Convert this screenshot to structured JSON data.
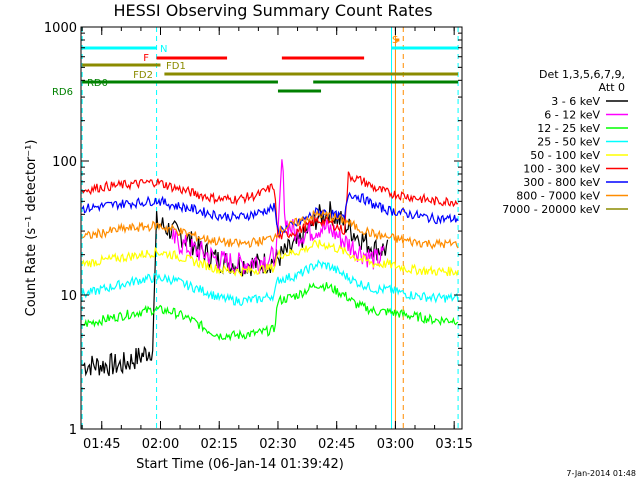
{
  "chart_data": {
    "type": "line",
    "title": "HESSI Observing Summary Count Rates",
    "xlabel": "Start Time (06-Jan-14 01:39:42)",
    "ylabel": "Count Rate (s⁻¹ detector⁻¹)",
    "timestamp": "7-Jan-2014 01:48",
    "yscale": "log",
    "ylim": [
      1,
      1000
    ],
    "xlim": [
      "01:39:42",
      "03:17:00"
    ],
    "x_ticks": [
      "01:45",
      "02:00",
      "02:15",
      "02:30",
      "02:45",
      "03:00",
      "03:15"
    ],
    "y_ticks": [
      "1",
      "10",
      "100",
      "1000"
    ],
    "grid": false,
    "legend": {
      "position": "right",
      "header": [
        "Det 1,3,5,6,7,9,",
        "Att 0"
      ],
      "entries": [
        {
          "label": "3 - 6 keV",
          "color": "#000000"
        },
        {
          "label": "6 - 12 keV",
          "color": "#ff00ff"
        },
        {
          "label": "12 - 25 keV",
          "color": "#00ff00"
        },
        {
          "label": "25 - 50 keV",
          "color": "#00ffff"
        },
        {
          "label": "50 - 100 keV",
          "color": "#ffff00"
        },
        {
          "label": "100 - 300 keV",
          "color": "#ff0000"
        },
        {
          "label": "300 - 800 keV",
          "color": "#0000ff"
        },
        {
          "label": "800 - 7000 keV",
          "color": "#ff8c00"
        },
        {
          "label": "7000 - 20000 keV",
          "color": "#8b8b00"
        }
      ]
    },
    "series": [
      {
        "name": "3 - 6 keV",
        "color": "#000000",
        "points": [
          [
            "01:40",
            3
          ],
          [
            "01:45",
            3
          ],
          [
            "01:50",
            3
          ],
          [
            "01:55",
            3.5
          ],
          [
            "01:58",
            4
          ],
          [
            "01:59",
            35
          ],
          [
            "02:03",
            30
          ],
          [
            "02:07",
            26
          ],
          [
            "02:10",
            22
          ],
          [
            "02:15",
            18
          ],
          [
            "02:20",
            17
          ],
          [
            "02:25",
            17
          ],
          [
            "02:29",
            18
          ],
          [
            "02:35",
            24
          ],
          [
            "02:40",
            38
          ],
          [
            "02:43",
            42
          ],
          [
            "02:47",
            34
          ],
          [
            "02:50",
            28
          ],
          [
            "02:55",
            22
          ],
          [
            "02:58",
            22
          ]
        ]
      },
      {
        "name": "6 - 12 keV",
        "color": "#ff00ff",
        "points": [
          [
            "02:03",
            26
          ],
          [
            "02:08",
            22
          ],
          [
            "02:12",
            20
          ],
          [
            "02:15",
            18
          ],
          [
            "02:20",
            17
          ],
          [
            "02:25",
            18
          ],
          [
            "02:29",
            19
          ],
          [
            "02:30",
            25
          ],
          [
            "02:31",
            100
          ],
          [
            "02:32",
            35
          ],
          [
            "02:35",
            28
          ],
          [
            "02:38",
            30
          ],
          [
            "02:41",
            32
          ],
          [
            "02:44",
            30
          ],
          [
            "02:47",
            25
          ],
          [
            "02:50",
            22
          ],
          [
            "02:55",
            18
          ],
          [
            "02:57",
            20
          ]
        ]
      },
      {
        "name": "12 - 25 keV",
        "color": "#00ff00",
        "points": [
          [
            "01:40",
            6
          ],
          [
            "01:45",
            6.5
          ],
          [
            "01:50",
            7
          ],
          [
            "01:55",
            7.5
          ],
          [
            "01:59",
            7.8
          ],
          [
            "02:03",
            7.5
          ],
          [
            "02:08",
            6.5
          ],
          [
            "02:12",
            5.5
          ],
          [
            "02:15",
            5
          ],
          [
            "02:20",
            5
          ],
          [
            "02:25",
            5.2
          ],
          [
            "02:29",
            5.5
          ],
          [
            "02:30",
            9
          ],
          [
            "02:35",
            10
          ],
          [
            "02:40",
            12
          ],
          [
            "02:43",
            11.5
          ],
          [
            "02:47",
            10
          ],
          [
            "02:50",
            8.5
          ],
          [
            "02:55",
            7.5
          ],
          [
            "02:58",
            7.5
          ],
          [
            "03:04",
            7
          ],
          [
            "03:10",
            6.5
          ],
          [
            "03:16",
            6.5
          ]
        ]
      },
      {
        "name": "25 - 50 keV",
        "color": "#00ffff",
        "points": [
          [
            "01:40",
            10
          ],
          [
            "01:45",
            11
          ],
          [
            "01:50",
            12
          ],
          [
            "01:55",
            13
          ],
          [
            "01:59",
            13.5
          ],
          [
            "02:03",
            13
          ],
          [
            "02:08",
            11.5
          ],
          [
            "02:12",
            10.5
          ],
          [
            "02:15",
            9.5
          ],
          [
            "02:20",
            9
          ],
          [
            "02:25",
            9.3
          ],
          [
            "02:29",
            10
          ],
          [
            "02:30",
            13
          ],
          [
            "02:35",
            14
          ],
          [
            "02:40",
            17
          ],
          [
            "02:43",
            16.5
          ],
          [
            "02:47",
            14
          ],
          [
            "02:50",
            12.5
          ],
          [
            "02:55",
            11
          ],
          [
            "02:58",
            11
          ],
          [
            "03:04",
            10
          ],
          [
            "03:10",
            9.5
          ],
          [
            "03:16",
            9.5
          ]
        ]
      },
      {
        "name": "50 - 100 keV",
        "color": "#ffff00",
        "points": [
          [
            "01:40",
            17
          ],
          [
            "01:45",
            18
          ],
          [
            "01:50",
            19
          ],
          [
            "01:55",
            20
          ],
          [
            "01:59",
            21
          ],
          [
            "02:03",
            20
          ],
          [
            "02:08",
            18
          ],
          [
            "02:12",
            16.5
          ],
          [
            "02:15",
            15.5
          ],
          [
            "02:20",
            15
          ],
          [
            "02:25",
            15.5
          ],
          [
            "02:29",
            16
          ],
          [
            "02:30",
            20
          ],
          [
            "02:35",
            21
          ],
          [
            "02:40",
            24
          ],
          [
            "02:43",
            23.5
          ],
          [
            "02:47",
            21
          ],
          [
            "02:50",
            19
          ],
          [
            "02:55",
            17
          ],
          [
            "02:58",
            17
          ],
          [
            "03:04",
            15.5
          ],
          [
            "03:10",
            15
          ],
          [
            "03:16",
            15
          ]
        ]
      },
      {
        "name": "100 - 300 keV",
        "color": "#ff0000",
        "points": [
          [
            "01:40",
            60
          ],
          [
            "01:45",
            64
          ],
          [
            "01:50",
            66
          ],
          [
            "01:55",
            68
          ],
          [
            "01:59",
            70
          ],
          [
            "02:03",
            64
          ],
          [
            "02:08",
            58
          ],
          [
            "02:12",
            54
          ],
          [
            "02:15",
            52
          ],
          [
            "02:20",
            52
          ],
          [
            "02:25",
            56
          ],
          [
            "02:29",
            65
          ],
          [
            "02:30",
            27
          ],
          [
            "02:35",
            30
          ],
          [
            "02:40",
            36
          ],
          [
            "02:43",
            35
          ],
          [
            "02:47",
            30
          ],
          [
            "02:48",
            78
          ],
          [
            "02:52",
            70
          ],
          [
            "02:55",
            62
          ],
          [
            "02:58",
            58
          ],
          [
            "03:04",
            54
          ],
          [
            "03:10",
            50
          ],
          [
            "03:16",
            50
          ]
        ]
      },
      {
        "name": "300 - 800 keV",
        "color": "#0000ff",
        "points": [
          [
            "01:40",
            44
          ],
          [
            "01:45",
            46
          ],
          [
            "01:50",
            48
          ],
          [
            "01:55",
            49
          ],
          [
            "01:59",
            51
          ],
          [
            "02:03",
            47
          ],
          [
            "02:08",
            44
          ],
          [
            "02:12",
            41
          ],
          [
            "02:15",
            39
          ],
          [
            "02:20",
            38
          ],
          [
            "02:25",
            41
          ],
          [
            "02:29",
            45
          ],
          [
            "02:30",
            30
          ],
          [
            "02:35",
            34
          ],
          [
            "02:40",
            42
          ],
          [
            "02:43",
            41
          ],
          [
            "02:47",
            37
          ],
          [
            "02:48",
            58
          ],
          [
            "02:52",
            52
          ],
          [
            "02:55",
            46
          ],
          [
            "02:58",
            43
          ],
          [
            "03:04",
            40
          ],
          [
            "03:10",
            37
          ],
          [
            "03:16",
            37
          ]
        ]
      },
      {
        "name": "800 - 7000 keV",
        "color": "#ff8c00",
        "points": [
          [
            "01:40",
            27
          ],
          [
            "01:45",
            29
          ],
          [
            "01:50",
            31
          ],
          [
            "01:55",
            32
          ],
          [
            "01:59",
            33
          ],
          [
            "02:03",
            31
          ],
          [
            "02:08",
            28
          ],
          [
            "02:12",
            26
          ],
          [
            "02:15",
            25
          ],
          [
            "02:20",
            24
          ],
          [
            "02:25",
            25
          ],
          [
            "02:29",
            27
          ],
          [
            "02:30",
            30
          ],
          [
            "02:35",
            35
          ],
          [
            "02:40",
            40
          ],
          [
            "02:43",
            39
          ],
          [
            "02:47",
            36
          ],
          [
            "02:50",
            32
          ],
          [
            "02:55",
            28
          ],
          [
            "02:58",
            27
          ],
          [
            "03:04",
            25
          ],
          [
            "03:10",
            24
          ],
          [
            "03:16",
            24
          ]
        ]
      }
    ],
    "flag_bars": [
      {
        "label": "N",
        "color": "#00ffff",
        "segments": [
          [
            "01:40",
            "01:59"
          ],
          [
            "02:59",
            "03:16"
          ]
        ]
      },
      {
        "label": "S",
        "color": "#ff8c00",
        "segments": [
          [
            "03:00",
            "03:01"
          ]
        ]
      },
      {
        "label": "F",
        "color": "#ff0000",
        "segments": [
          [
            "01:59",
            "02:17"
          ],
          [
            "02:31",
            "02:52"
          ]
        ]
      },
      {
        "label": "FD1",
        "color": "#8b8b00",
        "segments": [
          [
            "01:40",
            "02:00"
          ]
        ]
      },
      {
        "label": "FD2",
        "color": "#8b8b00",
        "segments": [
          [
            "02:01",
            "03:16"
          ]
        ]
      },
      {
        "label": "RD0",
        "color": "#008000",
        "segments": [
          [
            "01:40",
            "02:30"
          ],
          [
            "02:39",
            "03:16"
          ]
        ]
      },
      {
        "label": "RD6",
        "color": "#008000",
        "segments": [
          [
            "02:30",
            "02:41"
          ]
        ]
      }
    ],
    "vertical_markers": [
      {
        "time": "01:40",
        "color": "#00ffff",
        "style": "dashed"
      },
      {
        "time": "01:59",
        "color": "#00ffff",
        "style": "dashed"
      },
      {
        "time": "02:59",
        "color": "#00ffff",
        "style": "solid"
      },
      {
        "time": "03:00",
        "color": "#ff8c00",
        "style": "solid"
      },
      {
        "time": "03:02",
        "color": "#ff8c00",
        "style": "dashed"
      },
      {
        "time": "03:16",
        "color": "#00ffff",
        "style": "dashed"
      }
    ]
  }
}
